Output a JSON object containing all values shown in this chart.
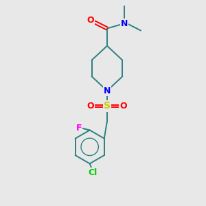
{
  "bg_color": "#e8e8e8",
  "atom_colors": {
    "O": "#ff0000",
    "N": "#0000ff",
    "S": "#cccc00",
    "F": "#ff00ff",
    "Cl": "#00cc00",
    "C": "#008080",
    "H": "#000000"
  },
  "bond_color": "#2d8080",
  "figsize": [
    3.0,
    3.0
  ],
  "dpi": 100
}
